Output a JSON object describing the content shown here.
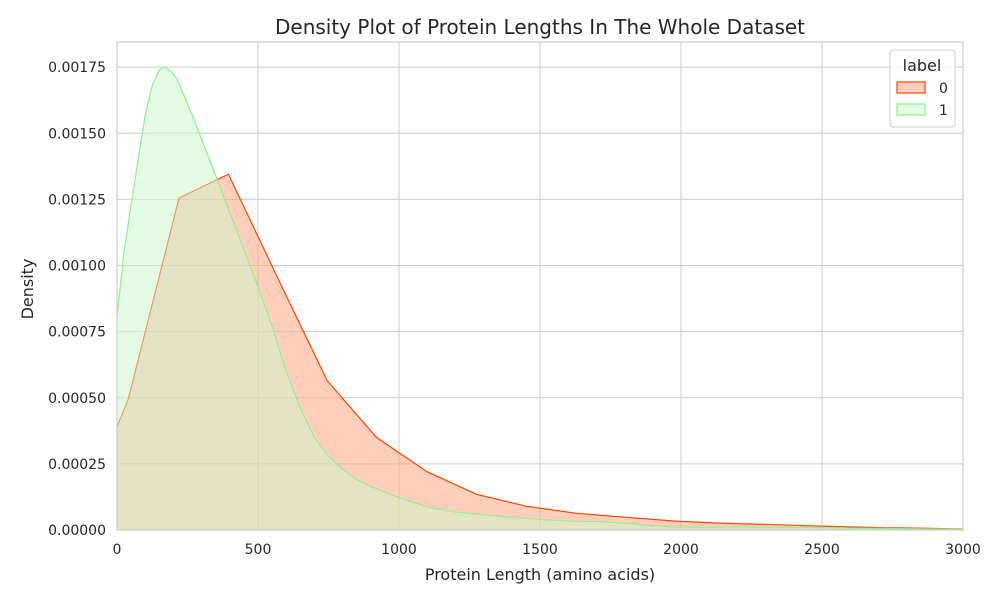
{
  "chart_data": {
    "type": "area",
    "title": "Density Plot of Protein Lengths In The Whole Dataset",
    "xlabel": "Protein Length (amino acids)",
    "ylabel": "Density",
    "xlim": [
      0,
      3000
    ],
    "ylim": [
      0,
      0.001845
    ],
    "x_ticks": [
      0,
      500,
      1000,
      1500,
      2000,
      2500,
      3000
    ],
    "x_tick_labels": [
      "0",
      "500",
      "1000",
      "1500",
      "2000",
      "2500",
      "3000"
    ],
    "y_ticks": [
      0,
      0.00025,
      0.0005,
      0.00075,
      0.001,
      0.00125,
      0.0015,
      0.00175
    ],
    "y_tick_labels": [
      "0.00000",
      "0.00025",
      "0.00050",
      "0.00075",
      "0.00100",
      "0.00125",
      "0.00150",
      "0.00175"
    ],
    "grid": true,
    "legend": {
      "title": "label",
      "position": "top-right",
      "entries": [
        "0",
        "1"
      ]
    },
    "series": [
      {
        "name": "0",
        "color": "#ff4500",
        "fill": "#ffa07a",
        "x": [
          0,
          40,
          220,
          395,
          580,
          745,
          920,
          1100,
          1275,
          1450,
          1630,
          1805,
          1985,
          2160,
          2340,
          2520,
          2700,
          2880,
          3000
        ],
        "y": [
          0.00039,
          0.000495,
          0.001255,
          0.001345,
          0.00093,
          0.000565,
          0.00035,
          0.00022,
          0.000135,
          9e-05,
          6.3e-05,
          4.8e-05,
          3.3e-05,
          2.5e-05,
          2e-05,
          1.4e-05,
          9e-06,
          6e-06,
          4e-06
        ]
      },
      {
        "name": "1",
        "color": "#90ee90",
        "fill": "#c9f7c9",
        "x": [
          0,
          25,
          50,
          75,
          100,
          125,
          150,
          170,
          190,
          210,
          235,
          270,
          310,
          350,
          400,
          450,
          500,
          550,
          600,
          650,
          700,
          750,
          800,
          850,
          900,
          1000,
          1100,
          1200,
          1300,
          1400,
          1500,
          1600,
          1700,
          1800,
          1900,
          2000,
          2200,
          2400,
          2600,
          2800,
          3000
        ],
        "y": [
          0.00081,
          0.00105,
          0.00123,
          0.0014,
          0.00157,
          0.00168,
          0.00174,
          0.00175,
          0.001735,
          0.00171,
          0.00165,
          0.00156,
          0.00145,
          0.00134,
          0.0012,
          0.00106,
          0.00092,
          0.00077,
          0.0006,
          0.00046,
          0.00035,
          0.00028,
          0.00023,
          0.00019,
          0.000165,
          0.000122,
          8.8e-05,
          6.8e-05,
          5.8e-05,
          4.8e-05,
          4e-05,
          3.4e-05,
          3.2e-05,
          2.6e-05,
          1.6e-05,
          1.1e-05,
          1.2e-05,
          1e-05,
          7e-06,
          5e-06,
          3e-06
        ]
      }
    ]
  }
}
